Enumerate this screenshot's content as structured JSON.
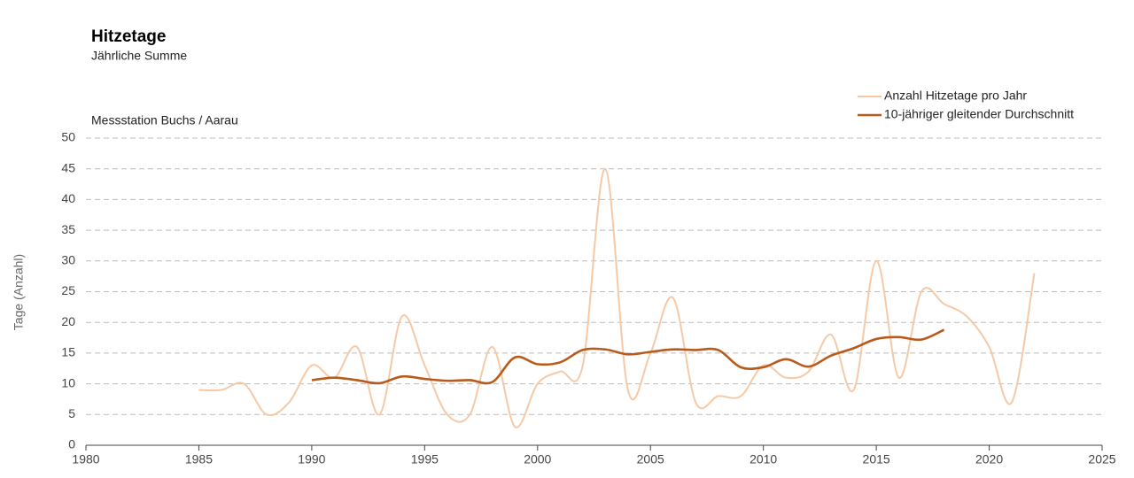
{
  "chart_data": {
    "type": "line",
    "title": "Hitzetage",
    "subtitle": "Jährliche Summe",
    "annotation": "Messstation Buchs / Aarau",
    "y_label": "Tage (Anzahl)",
    "x": [
      1985,
      1986,
      1987,
      1988,
      1989,
      1990,
      1991,
      1992,
      1993,
      1994,
      1995,
      1996,
      1997,
      1998,
      1999,
      2000,
      2001,
      2002,
      2003,
      2004,
      2005,
      2006,
      2007,
      2008,
      2009,
      2010,
      2011,
      2012,
      2013,
      2014,
      2015,
      2016,
      2017,
      2018,
      2019,
      2020,
      2021,
      2022
    ],
    "series": [
      {
        "name": "Anzahl Hitzetage pro Jahr",
        "color": "#f6c9a6",
        "values": [
          9,
          9,
          10,
          5,
          7,
          13,
          11,
          16,
          5,
          21,
          13,
          5,
          5,
          16,
          3,
          10,
          12,
          13,
          45,
          9,
          15,
          24,
          7,
          8,
          8,
          13,
          11,
          12,
          18,
          9,
          30,
          11,
          25,
          23,
          21,
          16,
          7,
          28
        ]
      },
      {
        "name": "10-jähriger gleitender Durchschnitt",
        "color": "#b85a1b",
        "values": [
          null,
          null,
          null,
          null,
          null,
          10.6,
          11,
          10.6,
          10.1,
          11.2,
          10.8,
          10.5,
          10.6,
          10.3,
          14.3,
          13.2,
          13.5,
          15.5,
          15.6,
          14.8,
          15.2,
          15.6,
          15.5,
          15.5,
          12.7,
          12.7,
          14,
          12.8,
          14.6,
          15.8,
          17.3,
          17.6,
          17.2,
          18.8,
          null,
          null,
          null,
          null
        ]
      }
    ],
    "xlim": [
      1980,
      2025
    ],
    "xticks": [
      1980,
      1985,
      1990,
      1995,
      2000,
      2005,
      2010,
      2015,
      2020,
      2025
    ],
    "ylim": [
      0,
      50
    ],
    "yticks": [
      0,
      5,
      10,
      15,
      20,
      25,
      30,
      35,
      40,
      45,
      50
    ],
    "grid": true,
    "legend": "top-right"
  }
}
